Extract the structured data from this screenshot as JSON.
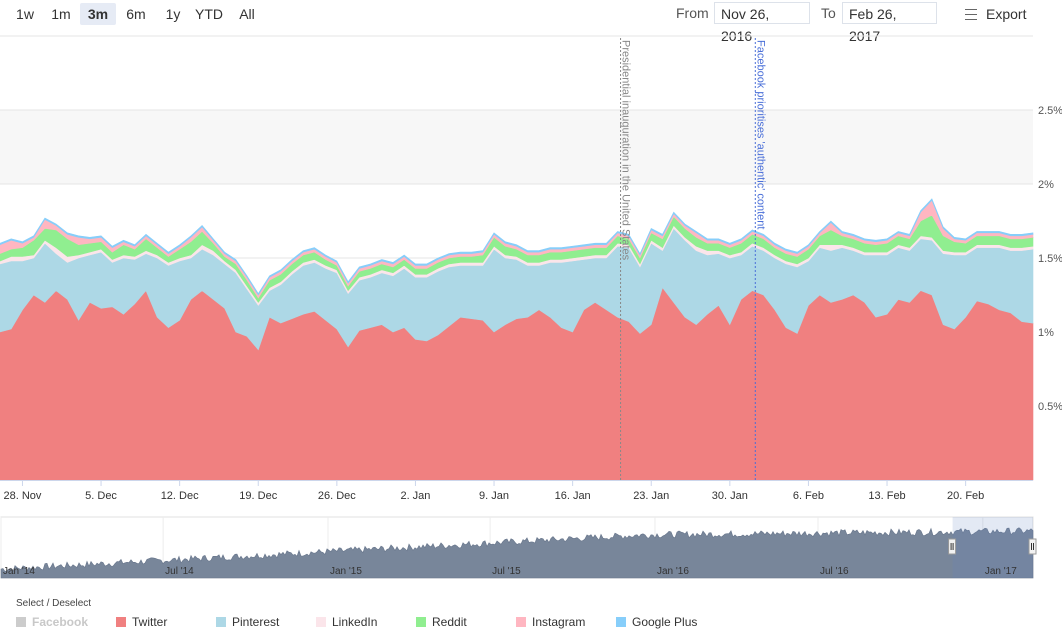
{
  "toolbar": {
    "ranges": [
      "1w",
      "1m",
      "3m",
      "6m",
      "1y",
      "YTD",
      "All"
    ],
    "active_range": "3m",
    "from_label": "From",
    "from_value": "Nov 26, 2016",
    "to_label": "To",
    "to_value": "Feb 26, 2017",
    "export_label": "Export",
    "export_icon": "hamburger-menu-icon"
  },
  "legend": {
    "title": "Select / Deselect",
    "items": [
      {
        "name": "Facebook",
        "color": "#cccccc",
        "visible": false
      },
      {
        "name": "Twitter",
        "color": "#f08080",
        "visible": true
      },
      {
        "name": "Pinterest",
        "color": "#add8e6",
        "visible": true
      },
      {
        "name": "LinkedIn",
        "color": "#fbe5ea",
        "visible": true
      },
      {
        "name": "Reddit",
        "color": "#90ee90",
        "visible": true
      },
      {
        "name": "Instagram",
        "color": "#ffb6c1",
        "visible": true
      },
      {
        "name": "Google Plus",
        "color": "#87cefa",
        "visible": true
      }
    ]
  },
  "chart_data": {
    "type": "area",
    "stacked": true,
    "x_range": [
      "2016-11-26",
      "2017-02-26"
    ],
    "ylim": [
      0,
      3
    ],
    "y_ticks": [
      "0.5%",
      "1%",
      "1.5%",
      "2%",
      "2.5%"
    ],
    "x_ticks": [
      "28. Nov",
      "5. Dec",
      "12. Dec",
      "19. Dec",
      "26. Dec",
      "2. Jan",
      "9. Jan",
      "16. Jan",
      "23. Jan",
      "30. Jan",
      "6. Feb",
      "13. Feb",
      "20. Feb"
    ],
    "grid": true,
    "x": [
      "2016-11-26",
      "2016-11-27",
      "2016-11-28",
      "2016-11-29",
      "2016-11-30",
      "2016-12-01",
      "2016-12-02",
      "2016-12-03",
      "2016-12-04",
      "2016-12-05",
      "2016-12-06",
      "2016-12-07",
      "2016-12-08",
      "2016-12-09",
      "2016-12-10",
      "2016-12-11",
      "2016-12-12",
      "2016-12-13",
      "2016-12-14",
      "2016-12-15",
      "2016-12-16",
      "2016-12-17",
      "2016-12-18",
      "2016-12-19",
      "2016-12-20",
      "2016-12-21",
      "2016-12-22",
      "2016-12-23",
      "2016-12-24",
      "2016-12-25",
      "2016-12-26",
      "2016-12-27",
      "2016-12-28",
      "2016-12-29",
      "2016-12-30",
      "2016-12-31",
      "2017-01-01",
      "2017-01-02",
      "2017-01-03",
      "2017-01-04",
      "2017-01-05",
      "2017-01-06",
      "2017-01-07",
      "2017-01-08",
      "2017-01-09",
      "2017-01-10",
      "2017-01-11",
      "2017-01-12",
      "2017-01-13",
      "2017-01-14",
      "2017-01-15",
      "2017-01-16",
      "2017-01-17",
      "2017-01-18",
      "2017-01-19",
      "2017-01-20",
      "2017-01-21",
      "2017-01-22",
      "2017-01-23",
      "2017-01-24",
      "2017-01-25",
      "2017-01-26",
      "2017-01-27",
      "2017-01-28",
      "2017-01-29",
      "2017-01-30",
      "2017-01-31",
      "2017-02-01",
      "2017-02-02",
      "2017-02-03",
      "2017-02-04",
      "2017-02-05",
      "2017-02-06",
      "2017-02-07",
      "2017-02-08",
      "2017-02-09",
      "2017-02-10",
      "2017-02-11",
      "2017-02-12",
      "2017-02-13",
      "2017-02-14",
      "2017-02-15",
      "2017-02-16",
      "2017-02-17",
      "2017-02-18",
      "2017-02-19",
      "2017-02-20",
      "2017-02-21",
      "2017-02-22",
      "2017-02-23",
      "2017-02-24",
      "2017-02-25",
      "2017-02-26"
    ],
    "series": [
      {
        "name": "Twitter",
        "color": "#f08080",
        "values": [
          1.0,
          1.02,
          1.15,
          1.25,
          1.2,
          1.28,
          1.22,
          1.08,
          1.2,
          1.16,
          1.17,
          1.12,
          1.19,
          1.28,
          1.1,
          1.03,
          1.08,
          1.22,
          1.28,
          1.22,
          1.16,
          1.0,
          0.97,
          0.88,
          1.1,
          1.06,
          1.09,
          1.12,
          1.14,
          1.08,
          1.02,
          0.9,
          1.01,
          1.03,
          1.05,
          1.0,
          1.03,
          0.95,
          0.94,
          0.98,
          1.04,
          1.1,
          1.09,
          1.08,
          1.0,
          1.05,
          1.09,
          1.1,
          1.15,
          1.1,
          1.03,
          1.0,
          1.15,
          1.2,
          1.15,
          1.1,
          1.07,
          0.99,
          1.05,
          1.3,
          1.2,
          1.1,
          1.05,
          1.12,
          1.18,
          1.05,
          1.22,
          1.28,
          1.25,
          1.15,
          1.03,
          0.99,
          1.18,
          1.25,
          1.2,
          1.22,
          1.25,
          1.2,
          1.1,
          1.12,
          1.22,
          1.2,
          1.28,
          1.25,
          1.05,
          1.02,
          1.1,
          1.21,
          1.19,
          1.15,
          1.13,
          1.07,
          1.06
        ]
      },
      {
        "name": "Pinterest",
        "color": "#add8e6",
        "values": [
          0.46,
          0.46,
          0.33,
          0.25,
          0.4,
          0.25,
          0.25,
          0.42,
          0.32,
          0.38,
          0.3,
          0.38,
          0.3,
          0.25,
          0.4,
          0.42,
          0.4,
          0.28,
          0.28,
          0.3,
          0.3,
          0.4,
          0.32,
          0.3,
          0.18,
          0.26,
          0.3,
          0.33,
          0.33,
          0.35,
          0.38,
          0.36,
          0.34,
          0.34,
          0.35,
          0.38,
          0.4,
          0.42,
          0.43,
          0.43,
          0.4,
          0.35,
          0.36,
          0.37,
          0.56,
          0.45,
          0.4,
          0.35,
          0.3,
          0.37,
          0.44,
          0.48,
          0.34,
          0.3,
          0.35,
          0.48,
          0.5,
          0.45,
          0.55,
          0.25,
          0.5,
          0.52,
          0.5,
          0.4,
          0.35,
          0.45,
          0.3,
          0.3,
          0.3,
          0.35,
          0.43,
          0.45,
          0.3,
          0.32,
          0.35,
          0.35,
          0.3,
          0.32,
          0.42,
          0.4,
          0.35,
          0.35,
          0.35,
          0.37,
          0.48,
          0.5,
          0.42,
          0.36,
          0.38,
          0.42,
          0.42,
          0.48,
          0.5
        ]
      },
      {
        "name": "LinkedIn",
        "color": "#fbe5ea",
        "values": [
          0.02,
          0.03,
          0.03,
          0.02,
          0.02,
          0.04,
          0.04,
          0.02,
          0.02,
          0.02,
          0.02,
          0.02,
          0.02,
          0.02,
          0.02,
          0.02,
          0.02,
          0.02,
          0.03,
          0.03,
          0.02,
          0.02,
          0.02,
          0.02,
          0.02,
          0.02,
          0.02,
          0.02,
          0.02,
          0.02,
          0.02,
          0.02,
          0.02,
          0.02,
          0.02,
          0.02,
          0.02,
          0.02,
          0.02,
          0.02,
          0.02,
          0.02,
          0.02,
          0.02,
          0.02,
          0.02,
          0.02,
          0.02,
          0.02,
          0.02,
          0.02,
          0.02,
          0.02,
          0.02,
          0.02,
          0.02,
          0.02,
          0.02,
          0.02,
          0.02,
          0.02,
          0.02,
          0.03,
          0.03,
          0.02,
          0.02,
          0.02,
          0.02,
          0.02,
          0.02,
          0.02,
          0.02,
          0.02,
          0.02,
          0.04,
          0.02,
          0.02,
          0.02,
          0.02,
          0.02,
          0.02,
          0.02,
          0.02,
          0.02,
          0.02,
          0.02,
          0.02,
          0.02,
          0.02,
          0.02,
          0.02,
          0.02,
          0.02
        ]
      },
      {
        "name": "Reddit",
        "color": "#90ee90",
        "values": [
          0.05,
          0.05,
          0.06,
          0.1,
          0.08,
          0.12,
          0.12,
          0.07,
          0.06,
          0.05,
          0.05,
          0.07,
          0.05,
          0.08,
          0.05,
          0.04,
          0.06,
          0.09,
          0.09,
          0.05,
          0.03,
          0.04,
          0.04,
          0.03,
          0.05,
          0.05,
          0.05,
          0.05,
          0.05,
          0.04,
          0.03,
          0.03,
          0.04,
          0.04,
          0.04,
          0.04,
          0.04,
          0.04,
          0.04,
          0.04,
          0.04,
          0.04,
          0.04,
          0.05,
          0.06,
          0.06,
          0.05,
          0.05,
          0.05,
          0.05,
          0.05,
          0.05,
          0.05,
          0.05,
          0.05,
          0.05,
          0.04,
          0.04,
          0.05,
          0.06,
          0.06,
          0.06,
          0.06,
          0.05,
          0.05,
          0.05,
          0.06,
          0.06,
          0.06,
          0.05,
          0.05,
          0.05,
          0.06,
          0.06,
          0.1,
          0.06,
          0.06,
          0.06,
          0.05,
          0.06,
          0.06,
          0.06,
          0.1,
          0.15,
          0.1,
          0.07,
          0.06,
          0.06,
          0.06,
          0.06,
          0.06,
          0.06,
          0.06
        ]
      },
      {
        "name": "Instagram",
        "color": "#ffb6c1",
        "values": [
          0.06,
          0.06,
          0.03,
          0.02,
          0.06,
          0.03,
          0.03,
          0.05,
          0.03,
          0.03,
          0.03,
          0.02,
          0.02,
          0.02,
          0.02,
          0.02,
          0.02,
          0.03,
          0.03,
          0.02,
          0.02,
          0.02,
          0.02,
          0.02,
          0.02,
          0.02,
          0.02,
          0.02,
          0.02,
          0.02,
          0.02,
          0.02,
          0.02,
          0.02,
          0.02,
          0.02,
          0.02,
          0.02,
          0.02,
          0.02,
          0.02,
          0.02,
          0.02,
          0.02,
          0.02,
          0.02,
          0.02,
          0.02,
          0.02,
          0.02,
          0.02,
          0.02,
          0.02,
          0.02,
          0.02,
          0.02,
          0.02,
          0.02,
          0.02,
          0.02,
          0.02,
          0.02,
          0.03,
          0.02,
          0.02,
          0.02,
          0.02,
          0.02,
          0.02,
          0.02,
          0.02,
          0.02,
          0.02,
          0.02,
          0.05,
          0.02,
          0.02,
          0.02,
          0.02,
          0.02,
          0.02,
          0.02,
          0.06,
          0.1,
          0.05,
          0.02,
          0.02,
          0.02,
          0.02,
          0.02,
          0.02,
          0.02,
          0.02
        ]
      },
      {
        "name": "Google Plus",
        "color": "#87cefa",
        "values": [
          0.01,
          0.01,
          0.01,
          0.01,
          0.01,
          0.01,
          0.01,
          0.01,
          0.01,
          0.01,
          0.01,
          0.01,
          0.01,
          0.01,
          0.01,
          0.01,
          0.01,
          0.01,
          0.01,
          0.01,
          0.01,
          0.01,
          0.01,
          0.01,
          0.01,
          0.01,
          0.01,
          0.01,
          0.01,
          0.01,
          0.01,
          0.01,
          0.01,
          0.01,
          0.01,
          0.01,
          0.01,
          0.01,
          0.01,
          0.01,
          0.01,
          0.01,
          0.01,
          0.01,
          0.01,
          0.01,
          0.01,
          0.01,
          0.01,
          0.01,
          0.01,
          0.01,
          0.01,
          0.01,
          0.01,
          0.01,
          0.01,
          0.01,
          0.01,
          0.01,
          0.01,
          0.01,
          0.01,
          0.01,
          0.01,
          0.01,
          0.01,
          0.01,
          0.01,
          0.01,
          0.01,
          0.01,
          0.01,
          0.01,
          0.01,
          0.01,
          0.01,
          0.01,
          0.01,
          0.01,
          0.01,
          0.01,
          0.01,
          0.01,
          0.01,
          0.01,
          0.01,
          0.01,
          0.01,
          0.01,
          0.01,
          0.01,
          0.01
        ]
      }
    ],
    "annotations": [
      {
        "x": "2017-01-20",
        "text": "Presidential inauguration in the United States",
        "color": "#888888"
      },
      {
        "x": "2017-02-01",
        "text": "Facebook prioritises 'authentic' content",
        "color": "#4a6fd8"
      }
    ]
  },
  "navigator": {
    "x_ticks": [
      "Jan '14",
      "Jul '14",
      "Jan '15",
      "Jul '15",
      "Jan '16",
      "Jul '16",
      "Jan '17"
    ],
    "x_range": [
      "2014-01-01",
      "2017-02-26"
    ],
    "selection": [
      "2016-11-26",
      "2017-02-26"
    ],
    "fill_color": "#78869a"
  }
}
